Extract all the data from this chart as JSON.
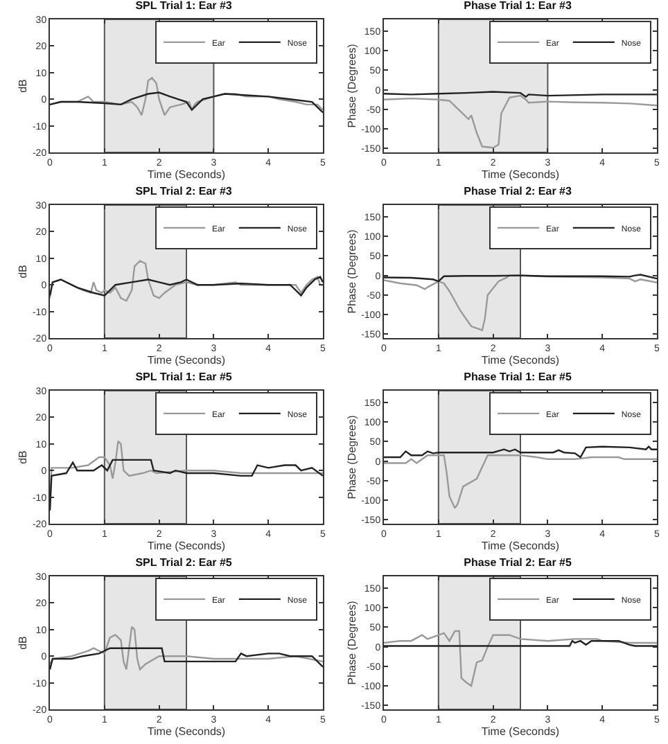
{
  "chart_data": [
    {
      "type": "line",
      "title": "SPL Trial 1: Ear #3",
      "xlabel": "Time (Seconds)",
      "ylabel": "dB",
      "xlim": [
        0,
        5
      ],
      "xticks": [
        0,
        1,
        2,
        3,
        4,
        5
      ],
      "ylim": [
        -20,
        30
      ],
      "yticks": [
        -20,
        -10,
        0,
        10,
        20,
        30
      ],
      "legend": "top right",
      "bands": [
        {
          "axis": "x",
          "from": 1,
          "to": 3,
          "color": "#e6e6e6"
        }
      ],
      "series": [
        {
          "name": "Ear",
          "color": "#999999",
          "x": [
            0,
            0.2,
            0.5,
            0.7,
            0.8,
            1.0,
            1.3,
            1.5,
            1.6,
            1.68,
            1.75,
            1.8,
            1.87,
            1.95,
            2.0,
            2.1,
            2.2,
            2.4,
            2.55,
            2.6,
            2.65,
            2.7,
            3.0,
            3.2,
            3.4,
            3.6,
            4.0,
            4.2,
            4.5,
            4.7,
            4.9,
            5
          ],
          "values": [
            -2,
            -1,
            -1,
            1,
            -1,
            -1,
            -2,
            -1,
            -3,
            -6,
            0,
            7,
            8,
            6,
            0,
            -6,
            -3,
            -2,
            -1,
            -4,
            -2,
            -1,
            1,
            2,
            2,
            1,
            1,
            0,
            -1,
            -2,
            -2,
            -4
          ]
        },
        {
          "name": "Nose",
          "color": "#222222",
          "x": [
            0,
            0.2,
            0.5,
            1.0,
            1.3,
            1.5,
            1.8,
            2.0,
            2.2,
            2.5,
            2.6,
            2.65,
            2.8,
            3.0,
            3.2,
            3.6,
            4.0,
            4.4,
            4.8,
            5
          ],
          "values": [
            -2,
            -1,
            -1,
            -1.5,
            -2,
            0,
            2,
            2.5,
            1,
            -1,
            -4,
            -3,
            0,
            1,
            2,
            1.5,
            1,
            0,
            -1,
            -5
          ]
        }
      ]
    },
    {
      "type": "line",
      "title": "Phase Trial 1: Ear #3",
      "xlabel": "Time (Seconds)",
      "ylabel": "Phase (Degrees)",
      "xlim": [
        0,
        5
      ],
      "xticks": [
        0,
        1,
        2,
        3,
        4,
        5
      ],
      "ylim": [
        -160,
        180
      ],
      "yticks": [
        -150,
        -100,
        -50,
        0,
        50,
        100,
        150
      ],
      "legend": "top right",
      "bands": [
        {
          "axis": "x",
          "from": 1,
          "to": 3,
          "color": "#e6e6e6"
        }
      ],
      "series": [
        {
          "name": "Ear",
          "color": "#999999",
          "x": [
            0,
            0.5,
            1.0,
            1.2,
            1.4,
            1.55,
            1.6,
            1.7,
            1.8,
            2.0,
            2.1,
            2.15,
            2.3,
            2.5,
            2.6,
            2.65,
            3.0,
            3.5,
            4.0,
            4.5,
            5
          ],
          "values": [
            -25,
            -22,
            -25,
            -28,
            -55,
            -75,
            -65,
            -110,
            -145,
            -148,
            -140,
            -60,
            -20,
            -15,
            -25,
            -33,
            -30,
            -32,
            -33,
            -35,
            -40
          ]
        },
        {
          "name": "Nose",
          "color": "#222222",
          "x": [
            0,
            0.5,
            1.0,
            1.5,
            2.0,
            2.5,
            2.6,
            2.65,
            3.0,
            4.0,
            5
          ],
          "values": [
            -10,
            -12,
            -10,
            -8,
            -5,
            -8,
            -18,
            -12,
            -15,
            -12,
            -12
          ]
        }
      ]
    },
    {
      "type": "line",
      "title": "SPL Trial 2: Ear #3",
      "xlabel": "Time (Seconds)",
      "ylabel": "dB",
      "xlim": [
        0,
        5
      ],
      "xticks": [
        0,
        1,
        2,
        3,
        4,
        5
      ],
      "ylim": [
        -20,
        30
      ],
      "yticks": [
        -20,
        -10,
        0,
        10,
        20,
        30
      ],
      "legend": "top right",
      "bands": [
        {
          "axis": "x",
          "from": 1,
          "to": 2.5,
          "color": "#e6e6e6"
        }
      ],
      "series": [
        {
          "name": "Ear",
          "color": "#999999",
          "x": [
            0,
            0.05,
            0.2,
            0.4,
            0.6,
            0.75,
            0.8,
            0.85,
            0.95,
            1.0,
            1.1,
            1.2,
            1.3,
            1.4,
            1.5,
            1.55,
            1.65,
            1.75,
            1.8,
            1.9,
            2.0,
            2.1,
            2.3,
            2.5,
            2.7,
            3.0,
            3.4,
            3.5,
            4.0,
            4.5,
            4.6,
            4.7,
            4.8,
            4.9,
            4.95,
            5
          ],
          "values": [
            -5,
            1,
            2,
            0,
            -2,
            -3,
            1,
            -2,
            -3,
            -2,
            -3,
            -1,
            -5,
            -6,
            -2,
            7,
            9,
            8,
            2,
            -4,
            -5,
            -3,
            0,
            1,
            0,
            0,
            1,
            0,
            0,
            0,
            -3,
            0,
            2,
            3,
            0,
            0
          ]
        },
        {
          "name": "Nose",
          "color": "#222222",
          "x": [
            0,
            0.05,
            0.2,
            0.5,
            0.8,
            1.0,
            1.2,
            1.5,
            1.8,
            2.0,
            2.2,
            2.4,
            2.5,
            2.7,
            3.0,
            3.5,
            4.0,
            4.4,
            4.55,
            4.6,
            4.7,
            4.85,
            4.95,
            5
          ],
          "values": [
            -4,
            1,
            2,
            -1,
            -3,
            -4,
            0,
            1,
            2,
            1,
            0,
            1,
            2,
            0,
            0,
            0.5,
            0,
            0,
            -3,
            -4,
            -1,
            2,
            3,
            1
          ]
        }
      ]
    },
    {
      "type": "line",
      "title": "Phase Trial 2: Ear #3",
      "xlabel": "Time (Seconds)",
      "ylabel": "Phase (Degrees)",
      "xlim": [
        0,
        5
      ],
      "xticks": [
        0,
        1,
        2,
        3,
        4,
        5
      ],
      "ylim": [
        -160,
        180
      ],
      "yticks": [
        -150,
        -100,
        -50,
        0,
        50,
        100,
        150
      ],
      "legend": "top right",
      "bands": [
        {
          "axis": "x",
          "from": 1,
          "to": 2.5,
          "color": "#e6e6e6"
        }
      ],
      "series": [
        {
          "name": "Ear",
          "color": "#999999",
          "x": [
            0,
            0.3,
            0.6,
            0.75,
            0.8,
            1.0,
            1.1,
            1.2,
            1.4,
            1.6,
            1.8,
            1.85,
            1.9,
            2.1,
            2.25,
            2.3,
            2.5,
            3.0,
            4.0,
            4.5,
            4.6,
            4.7,
            5
          ],
          "values": [
            -12,
            -20,
            -25,
            -35,
            -30,
            -15,
            -20,
            -40,
            -90,
            -130,
            -140,
            -110,
            -50,
            -15,
            -5,
            0,
            0,
            -3,
            -5,
            -8,
            -15,
            -10,
            -18
          ]
        },
        {
          "name": "Nose",
          "color": "#222222",
          "x": [
            0,
            0.5,
            0.9,
            1.0,
            1.1,
            1.5,
            2.0,
            2.5,
            3.0,
            4.0,
            4.5,
            4.6,
            4.7,
            5
          ],
          "values": [
            -5,
            -6,
            -10,
            -15,
            -2,
            -1,
            -1,
            0,
            -2,
            -2,
            -3,
            0,
            2,
            -8
          ]
        }
      ]
    },
    {
      "type": "line",
      "title": "SPL Trial 1: Ear #5",
      "xlabel": "Time (Seconds)",
      "ylabel": "dB",
      "xlim": [
        0,
        5
      ],
      "xticks": [
        0,
        1,
        2,
        3,
        4,
        5
      ],
      "ylim": [
        -20,
        30
      ],
      "yticks": [
        -20,
        -10,
        0,
        10,
        20,
        30
      ],
      "legend": "top right",
      "bands": [
        {
          "axis": "x",
          "from": 1,
          "to": 2.5,
          "color": "#e6e6e6"
        }
      ],
      "series": [
        {
          "name": "Ear",
          "color": "#999999",
          "x": [
            0,
            0.03,
            0.4,
            0.7,
            0.9,
            1.0,
            1.1,
            1.15,
            1.2,
            1.25,
            1.3,
            1.35,
            1.45,
            1.7,
            1.85,
            1.95,
            2.5,
            3.0,
            3.5,
            4.0,
            4.5,
            5
          ],
          "values": [
            -15,
            1,
            1,
            2,
            5,
            5,
            2,
            -3,
            3,
            11,
            10,
            0,
            -2,
            -1,
            0,
            -1,
            0,
            0,
            -1,
            -1,
            -1,
            -1
          ]
        },
        {
          "name": "Nose",
          "color": "#222222",
          "x": [
            0,
            0.03,
            0.3,
            0.42,
            0.5,
            0.8,
            0.95,
            1.05,
            1.15,
            1.5,
            1.85,
            1.9,
            2.2,
            2.3,
            2.5,
            3.0,
            3.5,
            3.7,
            3.8,
            4.0,
            4.3,
            4.5,
            4.6,
            4.8,
            5
          ],
          "values": [
            -15,
            -2,
            -1,
            3,
            0,
            0,
            2,
            0,
            4,
            4,
            4,
            0,
            -1,
            0,
            -1,
            -1,
            -2,
            -2,
            2,
            1,
            2,
            2,
            0,
            1,
            -2
          ]
        }
      ]
    },
    {
      "type": "line",
      "title": "Phase Trial 1: Ear #5",
      "xlabel": "Time (Seconds)",
      "ylabel": "Phase (Degrees)",
      "xlim": [
        0,
        5
      ],
      "xticks": [
        0,
        1,
        2,
        3,
        4,
        5
      ],
      "ylim": [
        -160,
        180
      ],
      "yticks": [
        -150,
        -100,
        -50,
        0,
        50,
        100,
        150
      ],
      "legend": "top right",
      "bands": [
        {
          "axis": "x",
          "from": 1,
          "to": 2.5,
          "color": "#e6e6e6"
        }
      ],
      "series": [
        {
          "name": "Ear",
          "color": "#999999",
          "x": [
            0,
            0.4,
            0.5,
            0.6,
            0.7,
            0.8,
            1.0,
            1.1,
            1.15,
            1.2,
            1.3,
            1.35,
            1.45,
            1.7,
            1.85,
            1.9,
            2.5,
            2.8,
            3.0,
            3.5,
            3.8,
            4.3,
            4.4,
            5
          ],
          "values": [
            -5,
            -5,
            5,
            -5,
            5,
            15,
            15,
            15,
            -30,
            -90,
            -120,
            -110,
            -65,
            -45,
            0,
            15,
            15,
            10,
            5,
            5,
            10,
            10,
            5,
            5
          ]
        },
        {
          "name": "Nose",
          "color": "#222222",
          "x": [
            0,
            0.3,
            0.4,
            0.5,
            0.7,
            0.8,
            0.9,
            1.0,
            2.0,
            2.2,
            2.3,
            2.4,
            2.5,
            3.1,
            3.2,
            3.3,
            3.5,
            3.6,
            3.7,
            4.0,
            4.5,
            4.8,
            4.85,
            4.9,
            5
          ],
          "values": [
            10,
            10,
            25,
            15,
            15,
            25,
            20,
            22,
            22,
            30,
            25,
            30,
            22,
            22,
            28,
            22,
            20,
            10,
            35,
            37,
            35,
            30,
            37,
            30,
            30
          ]
        }
      ]
    },
    {
      "type": "line",
      "title": "SPL Trial 2: Ear #5",
      "xlabel": "Time (Seconds)",
      "ylabel": "dB",
      "xlim": [
        0,
        5
      ],
      "xticks": [
        0,
        1,
        2,
        3,
        4,
        5
      ],
      "ylim": [
        -20,
        30
      ],
      "yticks": [
        -20,
        -10,
        0,
        10,
        20,
        30
      ],
      "legend": "top right",
      "bands": [
        {
          "axis": "x",
          "from": 1,
          "to": 2.5,
          "color": "#e6e6e6"
        }
      ],
      "series": [
        {
          "name": "Ear",
          "color": "#999999",
          "x": [
            0,
            0.05,
            0.4,
            0.7,
            0.8,
            0.9,
            1.0,
            1.1,
            1.2,
            1.3,
            1.35,
            1.4,
            1.45,
            1.5,
            1.55,
            1.6,
            1.65,
            1.75,
            2.0,
            2.5,
            3.0,
            3.5,
            4.0,
            4.5,
            5
          ],
          "values": [
            -3,
            -1,
            0,
            2,
            3,
            2,
            1,
            7,
            8,
            6,
            -2,
            -5,
            3,
            11,
            10,
            -1,
            -5,
            -3,
            0,
            0,
            -1,
            -1,
            -1,
            0,
            -2
          ]
        },
        {
          "name": "Nose",
          "color": "#222222",
          "x": [
            0,
            0.05,
            0.4,
            0.6,
            0.9,
            1.0,
            1.1,
            1.5,
            2.0,
            2.05,
            2.1,
            2.5,
            3.0,
            3.4,
            3.5,
            3.6,
            4.0,
            4.2,
            4.4,
            4.8,
            5
          ],
          "values": [
            -5,
            -1,
            -1,
            0,
            1,
            2,
            3,
            3,
            3,
            3,
            -2,
            -2,
            -2,
            -2,
            1,
            0,
            1,
            1,
            0,
            0,
            -4
          ]
        }
      ]
    },
    {
      "type": "line",
      "title": "Phase Trial 2: Ear #5",
      "xlabel": "Time (Seconds)",
      "ylabel": "Phase (Degrees)",
      "xlim": [
        0,
        5
      ],
      "xticks": [
        0,
        1,
        2,
        3,
        4,
        5
      ],
      "ylim": [
        -160,
        180
      ],
      "yticks": [
        -150,
        -100,
        -50,
        0,
        50,
        100,
        150
      ],
      "legend": "top right",
      "bands": [
        {
          "axis": "x",
          "from": 1,
          "to": 2.5,
          "color": "#e6e6e6"
        }
      ],
      "series": [
        {
          "name": "Ear",
          "color": "#999999",
          "x": [
            0,
            0.3,
            0.5,
            0.7,
            0.8,
            0.9,
            1.1,
            1.2,
            1.3,
            1.38,
            1.42,
            1.5,
            1.6,
            1.7,
            1.8,
            1.9,
            2.0,
            2.3,
            2.5,
            3.0,
            3.5,
            3.9,
            4.0,
            4.5,
            5
          ],
          "values": [
            10,
            15,
            15,
            30,
            20,
            25,
            35,
            15,
            40,
            40,
            -80,
            -90,
            -100,
            -40,
            -35,
            0,
            30,
            30,
            20,
            15,
            20,
            20,
            15,
            10,
            10
          ]
        },
        {
          "name": "Nose",
          "color": "#222222",
          "x": [
            0,
            3.4,
            3.45,
            3.5,
            3.6,
            3.7,
            3.8,
            4.3,
            4.5,
            4.6,
            5
          ],
          "values": [
            2,
            2,
            15,
            10,
            15,
            5,
            15,
            15,
            5,
            2,
            2
          ]
        }
      ]
    }
  ]
}
